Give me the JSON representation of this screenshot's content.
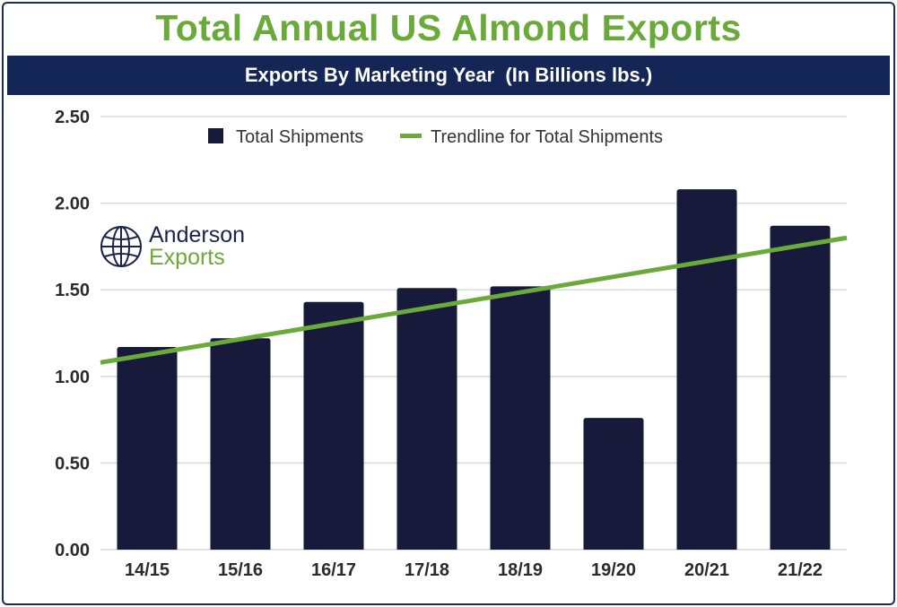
{
  "title": "Total Annual US Almond Exports",
  "subtitle": "Exports By Marketing Year  (In Billions lbs.)",
  "logo": {
    "line1": "Anderson",
    "line2": "Exports",
    "icon": "globe-icon"
  },
  "colors": {
    "title": "#6aaa3a",
    "banner": "#142656",
    "bar": "#181a3c",
    "trend": "#6aaa3a",
    "grid": "#d9d9d9"
  },
  "chart_data": {
    "type": "bar",
    "categories": [
      "14/15",
      "15/16",
      "16/17",
      "17/18",
      "18/19",
      "19/20",
      "20/21",
      "21/22"
    ],
    "series": [
      {
        "name": "Total Shipments",
        "values": [
          1.17,
          1.22,
          1.43,
          1.51,
          1.52,
          0.76,
          2.08,
          1.87
        ]
      }
    ],
    "trendline": {
      "name": "Trendline for Total Shipments",
      "start": 1.08,
      "end": 1.8
    },
    "yticks": [
      "0.00",
      "0.50",
      "1.00",
      "1.50",
      "2.00",
      "2.50"
    ],
    "ylim": [
      0,
      2.5
    ],
    "grid": true,
    "legend": "top-center"
  }
}
